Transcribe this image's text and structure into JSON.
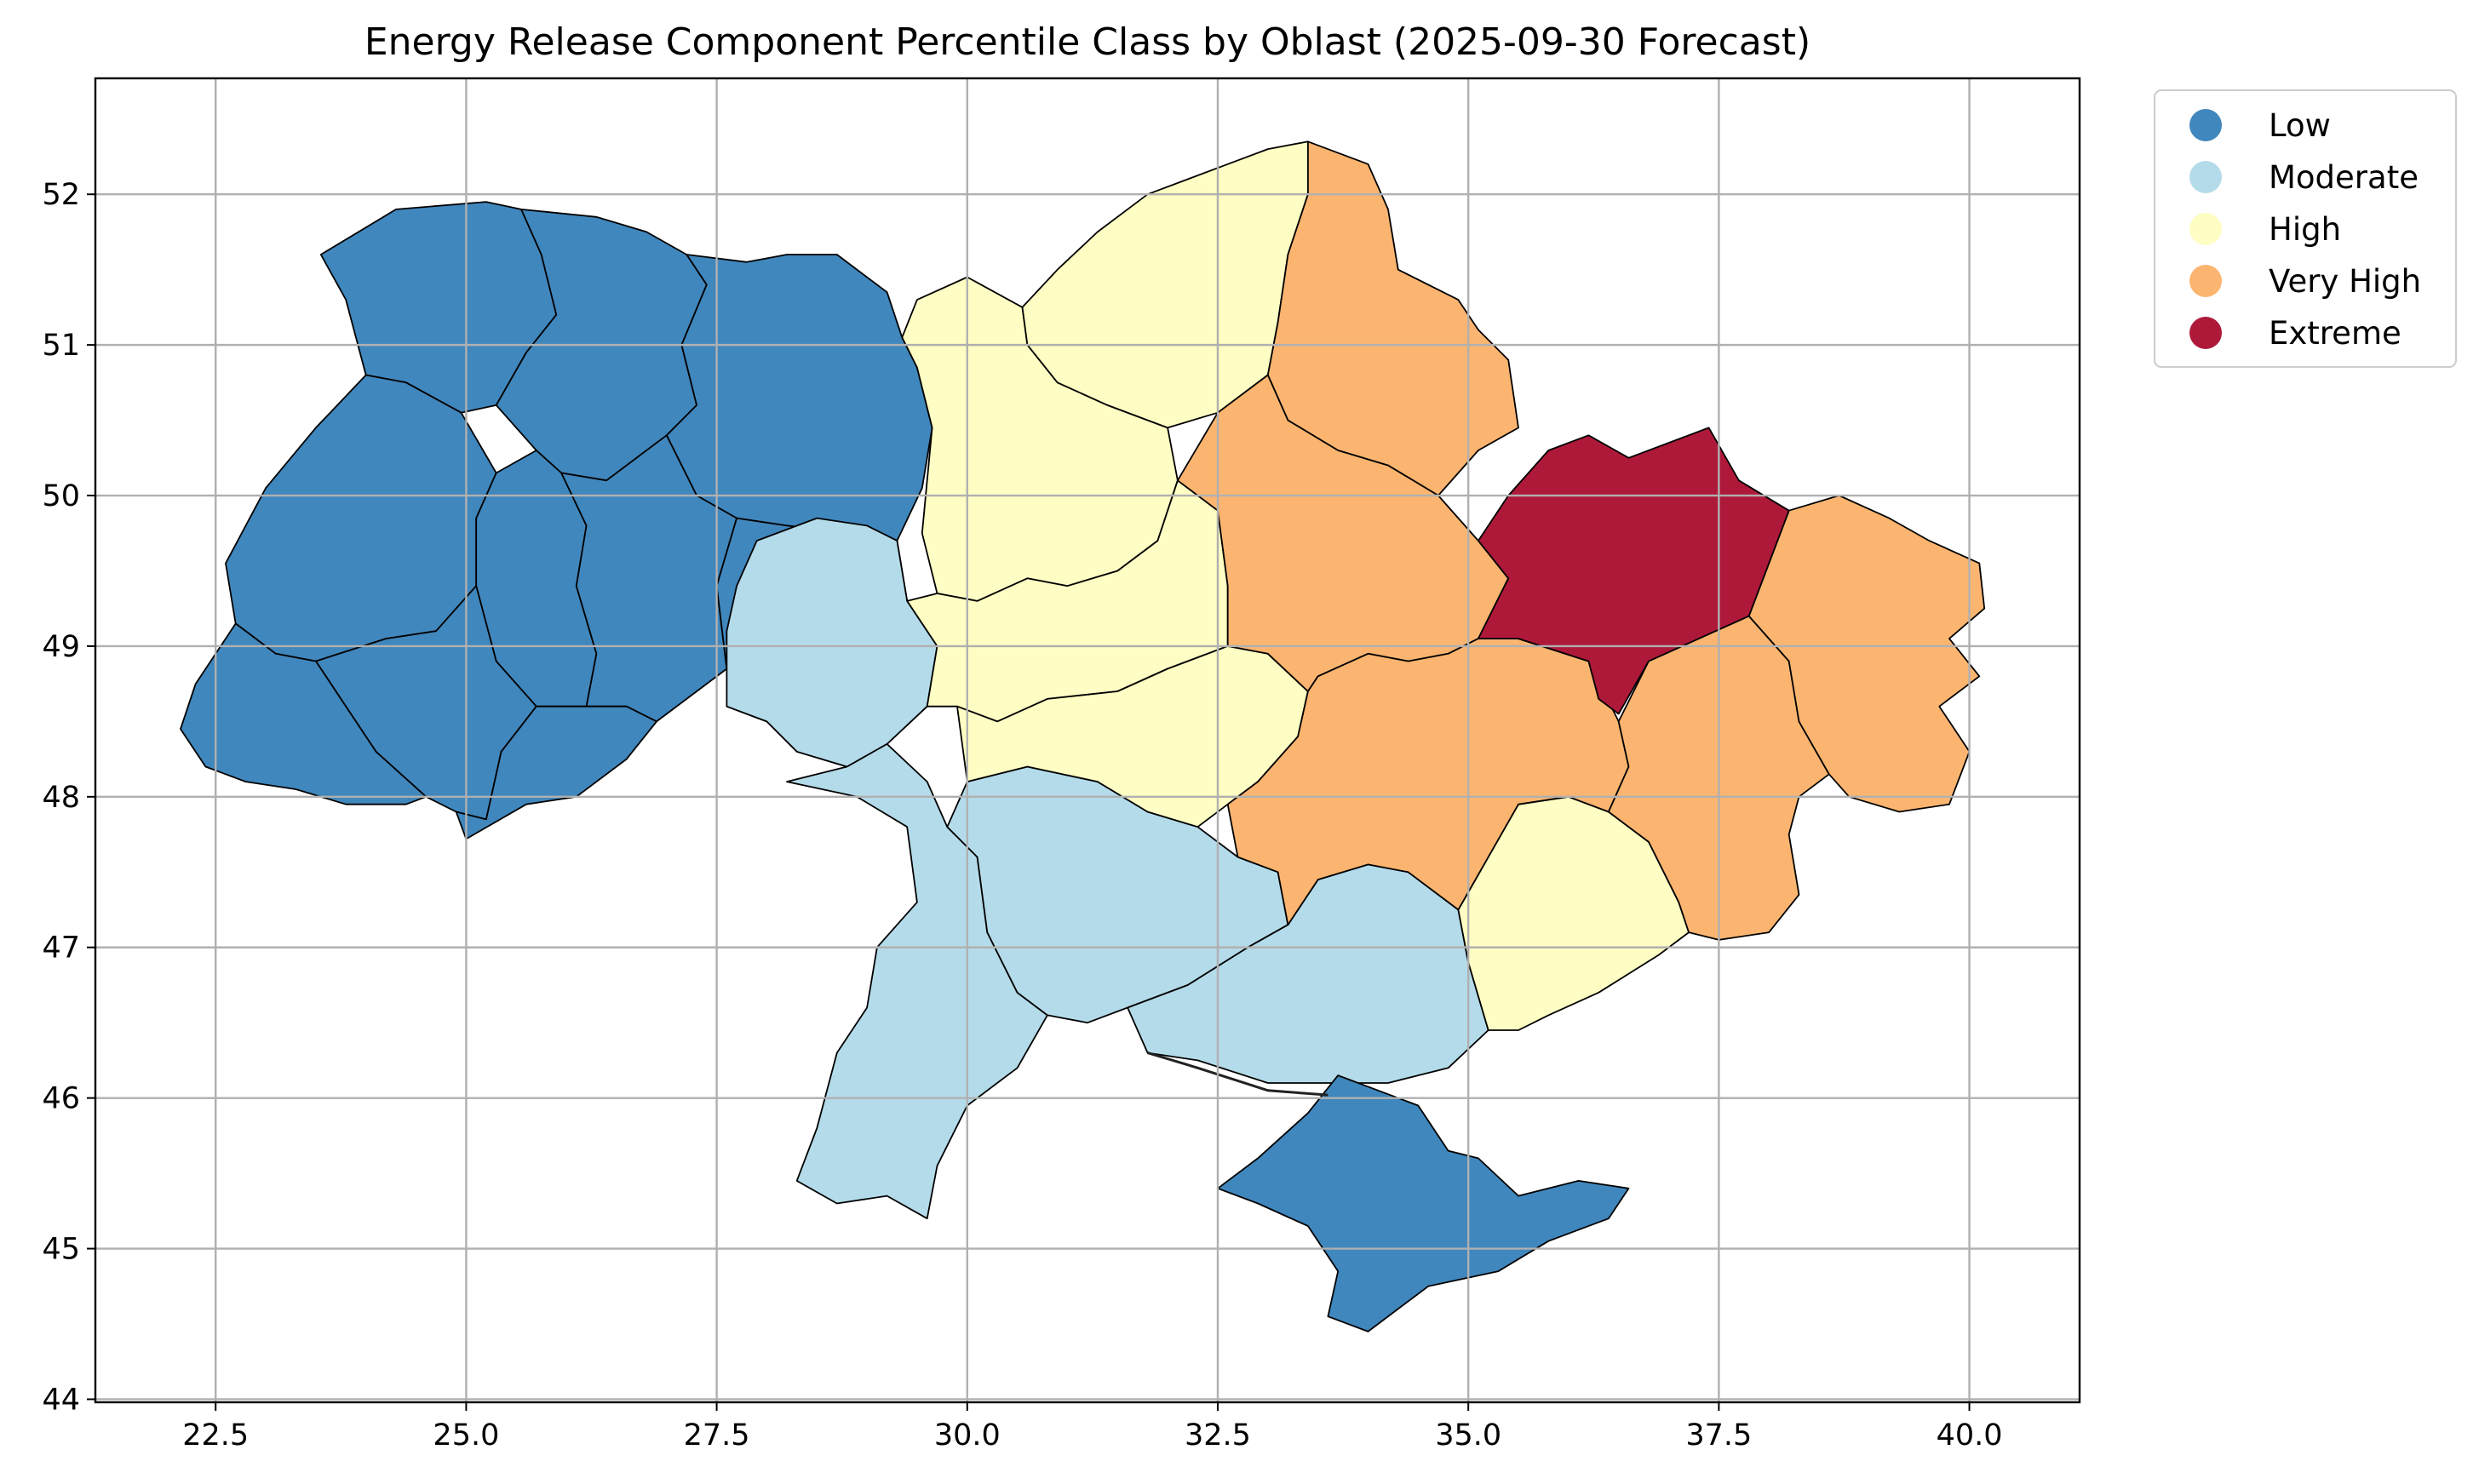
{
  "title": "Energy Release Component Percentile Class by Oblast (2025-09-30 Forecast)",
  "axes": {
    "x_ticks": [
      "22.5",
      "25.0",
      "27.5",
      "30.0",
      "32.5",
      "35.0",
      "37.5",
      "40.0"
    ],
    "y_ticks": [
      "44",
      "45",
      "46",
      "47",
      "48",
      "49",
      "50",
      "51",
      "52"
    ],
    "xlim": [
      21.3,
      41.1
    ],
    "ylim": [
      43.98,
      52.77
    ],
    "grid": true
  },
  "legend": {
    "placement": "outside-top-right",
    "items": [
      {
        "label": "Low",
        "color": "#4087bd"
      },
      {
        "label": "Moderate",
        "color": "#b4dbea"
      },
      {
        "label": "High",
        "color": "#fefdc3"
      },
      {
        "label": "Very High",
        "color": "#fbb570"
      },
      {
        "label": "Extreme",
        "color": "#ae193a"
      }
    ]
  },
  "classes": {
    "low": "#4087bd",
    "moderate": "#b4dbea",
    "high": "#fefdc3",
    "very_high": "#fbb570",
    "extreme": "#ae193a"
  }
}
